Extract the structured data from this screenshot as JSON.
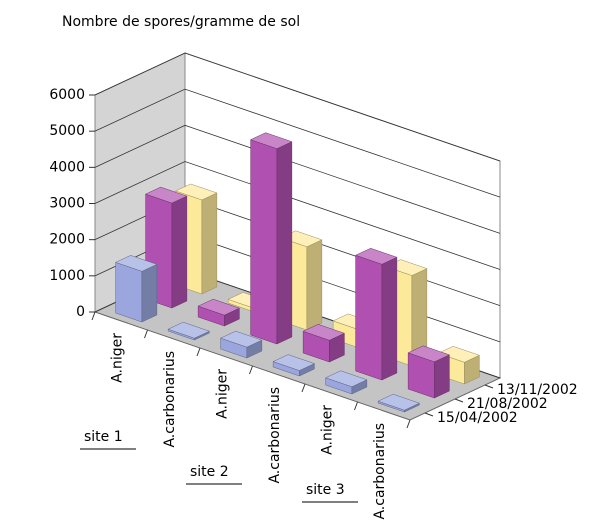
{
  "chart_data": {
    "type": "bar3d",
    "title": "Nombre de spores/gramme de sol",
    "categories": [
      "A.niger",
      "A.carbonarius",
      "A.niger",
      "A.carbonarius",
      "A.niger",
      "A.carbonarius"
    ],
    "groups": [
      "site 1",
      "site 2",
      "site 3"
    ],
    "series": [
      {
        "name": "15/04/2002",
        "color": "#9aa6dd",
        "values": [
          1400,
          50,
          300,
          150,
          200,
          50
        ]
      },
      {
        "name": "21/08/2002",
        "color": "#b050b0",
        "values": [
          2900,
          300,
          5400,
          600,
          3200,
          1000
        ]
      },
      {
        "name": "13/11/2002",
        "color": "#fde99a",
        "values": [
          2600,
          100,
          2300,
          500,
          2500,
          600
        ]
      }
    ],
    "ylim": [
      0,
      6000
    ],
    "yticks": [
      0,
      1000,
      2000,
      3000,
      4000,
      5000,
      6000
    ],
    "grid": true
  }
}
